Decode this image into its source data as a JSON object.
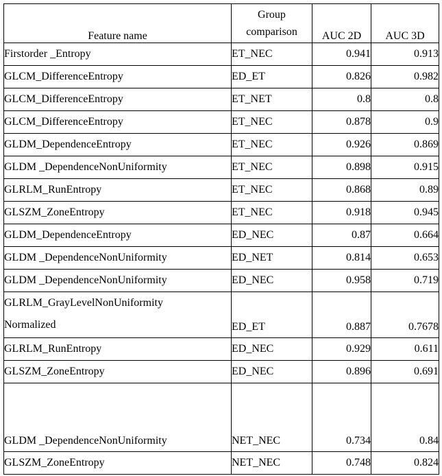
{
  "table": {
    "headers": {
      "feature": "Feature name",
      "group_line1": "Group",
      "group_line2": "comparison",
      "auc2d": "AUC 2D",
      "auc3d": "AUC 3D"
    },
    "rows": [
      {
        "feature": "Firstorder _Entropy",
        "group": "ET_NEC",
        "auc2d": "0.941",
        "auc3d": "0.913"
      },
      {
        "feature": "GLCM_DifferenceEntropy",
        "group": "ED_ET",
        "auc2d": "0.826",
        "auc3d": "0.982"
      },
      {
        "feature": "GLCM_DifferenceEntropy",
        "group": "ET_NET",
        "auc2d": "0.8",
        "auc3d": "0.8"
      },
      {
        "feature": "GLCM_DifferenceEntropy",
        "group": "ET_NEC",
        "auc2d": "0.878",
        "auc3d": "0.9"
      },
      {
        "feature": "GLDM_DependenceEntropy",
        "group": "ET_NEC",
        "auc2d": "0.926",
        "auc3d": "0.869"
      },
      {
        "feature": "GLDM _DependenceNonUniformity",
        "group": "ET_NEC",
        "auc2d": "0.898",
        "auc3d": "0.915"
      },
      {
        "feature": "GLRLM_RunEntropy",
        "group": "ET_NEC",
        "auc2d": "0.868",
        "auc3d": "0.89"
      },
      {
        "feature": "GLSZM_ZoneEntropy",
        "group": "ET_NEC",
        "auc2d": "0.918",
        "auc3d": "0.945"
      },
      {
        "feature": "GLDM_DependenceEntropy",
        "group": "ED_NEC",
        "auc2d": "0.87",
        "auc3d": "0.664"
      },
      {
        "feature": "GLDM _DependenceNonUniformity",
        "group": "ED_NET",
        "auc2d": "0.814",
        "auc3d": "0.653"
      },
      {
        "feature": "GLDM _DependenceNonUniformity",
        "group": "ED_NEC",
        "auc2d": "0.958",
        "auc3d": "0.719"
      },
      {
        "feature": "GLRLM_GrayLevelNonUniformity\nNormalized",
        "group": "ED_ET",
        "auc2d": "0.887",
        "auc3d": "0.7678",
        "variant": "double"
      },
      {
        "feature": "GLRLM_RunEntropy",
        "group": "ED_NEC",
        "auc2d": "0.929",
        "auc3d": "0.611"
      },
      {
        "feature": "GLSZM_ZoneEntropy",
        "group": "ED_NEC",
        "auc2d": "0.896",
        "auc3d": "0.691"
      },
      {
        "feature": "GLDM _DependenceNonUniformity",
        "group": "NET_NEC",
        "auc2d": "0.734",
        "auc3d": "0.84",
        "variant": "tall"
      },
      {
        "feature": "GLSZM_ZoneEntropy",
        "group": "NET_NEC",
        "auc2d": "0.748",
        "auc3d": "0.824"
      }
    ]
  }
}
